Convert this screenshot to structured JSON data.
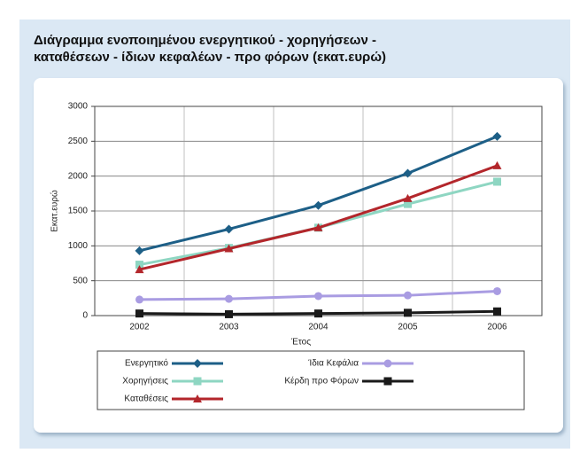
{
  "chart_data": {
    "type": "line",
    "title": [
      "Διάγραμμα ενοποιημένου ενεργητικού - χορηγήσεων -",
      "καταθέσεων - ίδιων κεφαλέων - προ φόρων (εκατ.ευρώ)"
    ],
    "x_label": "Έτος",
    "y_label": "Εκατ.ευρώ",
    "categories": [
      "2002",
      "2003",
      "2004",
      "2005",
      "2006"
    ],
    "ylim": [
      0,
      3000
    ],
    "yticks": [
      0,
      500,
      1000,
      1500,
      2000,
      2500,
      3000
    ],
    "grid": true,
    "legend": "bottom",
    "series": [
      {
        "name": "Ενεργητικό",
        "color": "#1d5f87",
        "marker": "diamond",
        "values": [
          930,
          1240,
          1580,
          2040,
          2570
        ]
      },
      {
        "name": "Χορηγήσεις",
        "color": "#8ed6c2",
        "marker": "square",
        "values": [
          730,
          970,
          1260,
          1600,
          1920
        ]
      },
      {
        "name": "Καταθέσεις",
        "color": "#b3262b",
        "marker": "triangle",
        "values": [
          660,
          960,
          1260,
          1680,
          2150
        ]
      },
      {
        "name": "Ίδια Κεφάλια",
        "color": "#a99ce2",
        "marker": "circle",
        "values": [
          230,
          240,
          280,
          290,
          350
        ]
      },
      {
        "name": "Κέρδη προ Φόρων",
        "color": "#1a1a1a",
        "marker": "square",
        "values": [
          30,
          20,
          30,
          40,
          60
        ]
      }
    ]
  }
}
